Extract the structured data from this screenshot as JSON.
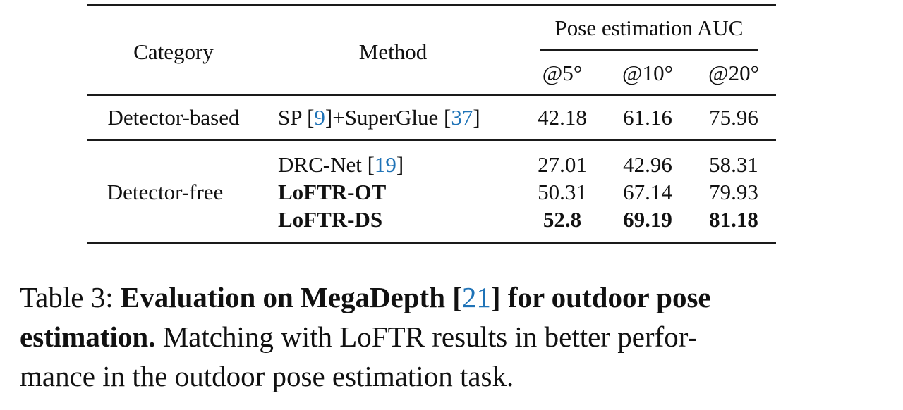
{
  "table": {
    "header": {
      "category": "Category",
      "method": "Method",
      "group": "Pose estimation AUC",
      "col5": "@5°",
      "col10": "@10°",
      "col20": "@20°"
    },
    "groups": [
      {
        "category": "Detector-based",
        "rows": [
          {
            "method_prefix": "SP [",
            "method_ref1": "9",
            "method_mid": "]+SuperGlue [",
            "method_ref2": "37",
            "method_suffix": "]",
            "auc5": "42.18",
            "auc10": "61.16",
            "auc20": "75.96"
          }
        ]
      },
      {
        "category": "Detector-free",
        "rows": [
          {
            "method_prefix": "DRC-Net [",
            "method_ref1": "19",
            "method_suffix": "]",
            "auc5": "27.01",
            "auc10": "42.96",
            "auc20": "58.31"
          },
          {
            "method": "LoFTR-OT",
            "auc5": "50.31",
            "auc10": "67.14",
            "auc20": "79.93"
          },
          {
            "method": "LoFTR-DS",
            "auc5": "52.8",
            "auc10": "69.19",
            "auc20": "81.18"
          }
        ]
      }
    ]
  },
  "caption": {
    "label": "Table 3:",
    "bold_a": "Evaluation on MegaDepth [",
    "ref": "21",
    "bold_b": "] for outdoor pose",
    "bold_c": "estimation.",
    "rest_1": "Matching with LoFTR results in better perfor-",
    "rest_2": "mance in the outdoor pose estimation task."
  },
  "colors": {
    "text": "#111111",
    "rule": "#1a1a1a",
    "reference_link": "#1f73b7"
  }
}
